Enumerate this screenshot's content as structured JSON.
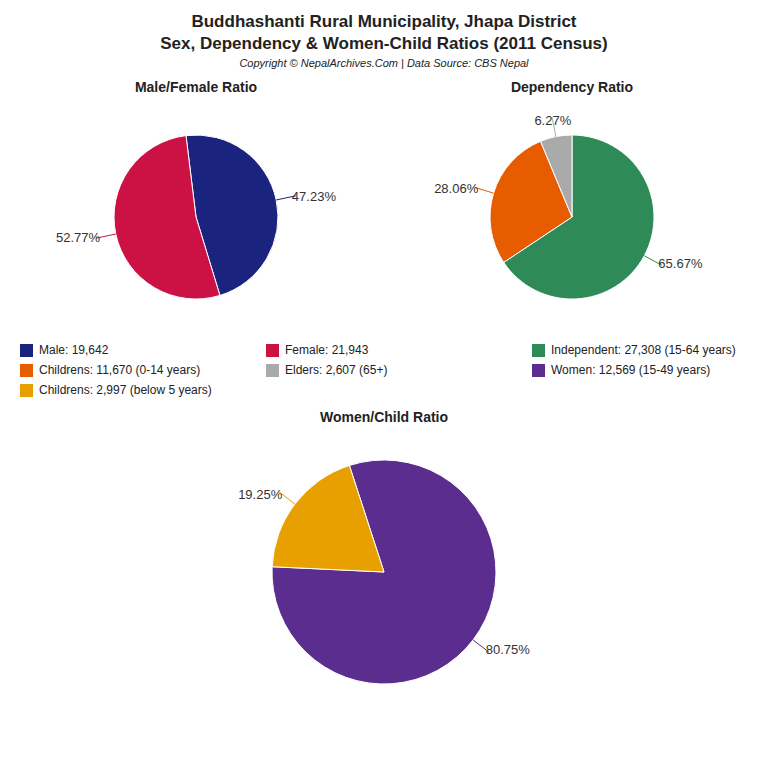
{
  "title": "Buddhashanti Rural Municipality, Jhapa District",
  "subtitle": "Sex, Dependency & Women-Child Ratios (2011 Census)",
  "annotations": [
    "Copyright © NepalArchives.Com | Data Source: CBS Nepal"
  ],
  "chart_data": [
    {
      "type": "pie",
      "title": "Male/Female Ratio",
      "categories": [
        "Male: 19,642",
        "Female: 21,943"
      ],
      "values": [
        47.23,
        52.77
      ],
      "value_labels": [
        "47.23%",
        "52.77%"
      ],
      "colors": [
        "#1a237e",
        "#cc1144"
      ],
      "data_labels": true
    },
    {
      "type": "pie",
      "title": "Dependency Ratio",
      "categories": [
        "Independent: 27,308 (15-64 years)",
        "Childrens: 11,670 (0-14 years)",
        "Elders: 2,607 (65+)"
      ],
      "values": [
        65.67,
        28.06,
        6.27
      ],
      "value_labels": [
        "65.67%",
        "28.06%",
        "6.27%"
      ],
      "colors": [
        "#2e8b57",
        "#e85c00",
        "#aaaaaa"
      ],
      "data_labels": true
    },
    {
      "type": "pie",
      "title": "Women/Child Ratio",
      "categories": [
        "Women: 12,569 (15-49 years)",
        "Childrens: 2,997 (below 5 years)"
      ],
      "values": [
        80.75,
        19.25
      ],
      "value_labels": [
        "80.75%",
        "19.25%"
      ],
      "colors": [
        "#5b2d8e",
        "#e8a000"
      ],
      "data_labels": true
    }
  ]
}
